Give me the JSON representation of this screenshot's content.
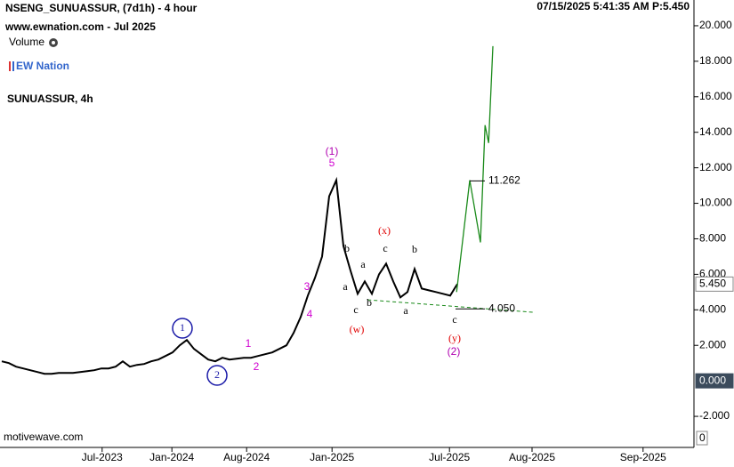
{
  "chart_data": {
    "type": "line",
    "title": "NSENG_SUNUASSUR, (7d1h) - 4 hour",
    "subtitle": "www.ewnation.com  - Jul 2025",
    "volume_label": "Volume",
    "logo_text": "EW Nation",
    "symbol_label": "SUNUASSUR, 4h",
    "status": "07/15/2025 5:41:35 AM  P:5.450",
    "footer": "motivewave.com",
    "xlim": [
      -0.25,
      97.25
    ],
    "xticks": [
      {
        "value": 14.1,
        "label": "Jul-2023"
      },
      {
        "value": 23.9,
        "label": "Jan-2024"
      },
      {
        "value": 34.4,
        "label": "Aug-2024"
      },
      {
        "value": 46.4,
        "label": "Jan-2025"
      },
      {
        "value": 62.9,
        "label": "Jul-2025"
      },
      {
        "value": 74.5,
        "label": "Aug-2025"
      },
      {
        "value": 90.1,
        "label": "Sep-2025"
      }
    ],
    "ylim": [
      -3.75,
      21.45
    ],
    "yticks": [
      {
        "value": -2,
        "label": "-2.000"
      },
      {
        "value": 2,
        "label": "2.000"
      },
      {
        "value": 4,
        "label": "4.000"
      },
      {
        "value": 6,
        "label": "6.000"
      },
      {
        "value": 8,
        "label": "8.000"
      },
      {
        "value": 10,
        "label": "10.000"
      },
      {
        "value": 12,
        "label": "12.000"
      },
      {
        "value": 14,
        "label": "14.000"
      },
      {
        "value": 16,
        "label": "16.000"
      },
      {
        "value": 18,
        "label": "18.000"
      },
      {
        "value": 20,
        "label": "20.000"
      }
    ],
    "price_marker": {
      "value": 5.45,
      "label": "5.450"
    },
    "volume_marker": {
      "value": 0,
      "label": "0.000"
    },
    "volume_axis_label": 0,
    "series": [
      {
        "color": "#000000",
        "values": [
          1.1,
          1.0,
          0.8,
          0.7,
          0.6,
          0.5,
          0.4,
          0.4,
          0.45,
          0.45,
          0.45,
          0.5,
          0.55,
          0.6,
          0.7,
          0.7,
          0.8,
          1.1,
          0.8,
          0.9,
          0.95,
          1.1,
          1.2,
          1.4,
          1.6,
          2.0,
          2.3,
          1.8,
          1.5,
          1.2,
          1.1,
          1.3,
          1.2,
          1.25,
          1.3,
          1.3,
          1.4,
          1.5,
          1.6,
          1.8,
          2.0,
          2.7,
          3.6,
          4.8,
          5.8,
          7.0,
          10.4,
          11.3,
          7.6,
          6.2,
          4.9,
          5.6,
          4.9,
          6.0,
          6.6,
          5.6,
          4.7,
          5.0,
          6.3,
          5.2,
          5.1,
          5.0,
          4.9,
          4.8,
          5.45
        ]
      },
      {
        "color": "#1a8a1a",
        "x": [
          63.9,
          65.75,
          67.25,
          67.9,
          68.4,
          69
        ],
        "values": [
          5.0,
          11.3,
          7.8,
          14.4,
          13.4,
          18.85
        ]
      },
      {
        "color": "#1a8a1a",
        "dashed": true,
        "x": [
          51.4,
          74.75
        ],
        "values": [
          4.56,
          3.86
        ]
      }
    ],
    "levels": [
      {
        "value": 11.262,
        "label": "11.262"
      },
      {
        "value": 4.05,
        "label": "4.050"
      }
    ],
    "wave_labels": [
      {
        "text": "(1)",
        "color": "#b000b0"
      },
      {
        "text": "5",
        "color": "#d000d0"
      },
      {
        "text": "1",
        "color": "#1a1aa8"
      },
      {
        "text": "2",
        "color": "#1a1aa8"
      },
      {
        "text": "1",
        "color": "#d000d0"
      },
      {
        "text": "2",
        "color": "#d000d0"
      },
      {
        "text": "3",
        "color": "#d000d0"
      },
      {
        "text": "4",
        "color": "#d000d0"
      },
      {
        "text": "b",
        "color": "#000000"
      },
      {
        "text": "a",
        "color": "#000000"
      },
      {
        "text": "a",
        "color": "#000000"
      },
      {
        "text": "c",
        "color": "#000000"
      },
      {
        "text": "b",
        "color": "#000000"
      },
      {
        "text": "(w)",
        "color": "#e00000"
      },
      {
        "text": "(x)",
        "color": "#e00000"
      },
      {
        "text": "c",
        "color": "#000000"
      },
      {
        "text": "b",
        "color": "#000000"
      },
      {
        "text": "a",
        "color": "#000000"
      },
      {
        "text": "c",
        "color": "#000000"
      },
      {
        "text": "(y)",
        "color": "#e00000"
      },
      {
        "text": "(2)",
        "color": "#b000b0"
      }
    ]
  }
}
